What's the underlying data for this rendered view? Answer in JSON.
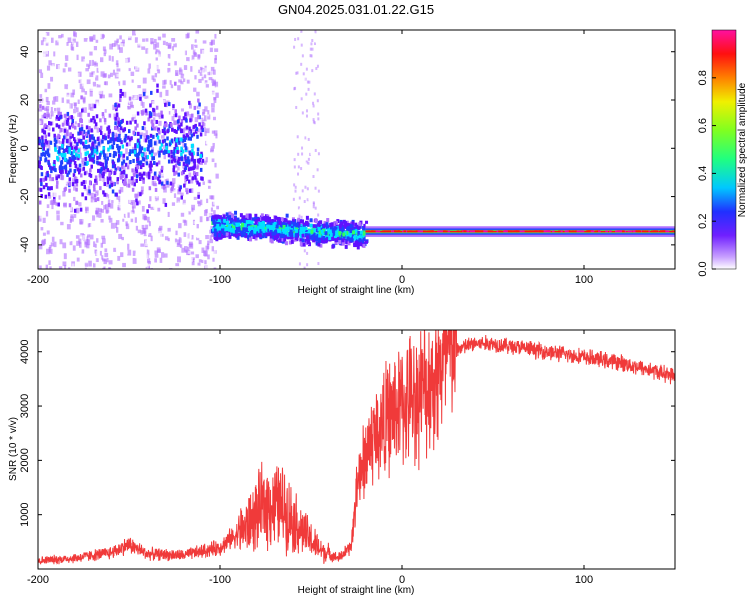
{
  "title": "GN04.2025.031.01.22.G15",
  "colors": {
    "snr_line": "#f03a3a",
    "background": "#ffffff"
  },
  "chart_data": [
    {
      "type": "heatmap",
      "name": "spectrogram",
      "xlabel": "Height of straight line (km)",
      "ylabel": "Frequency (Hz)",
      "xlim": [
        -200,
        150
      ],
      "ylim": [
        -50,
        49
      ],
      "x_ticks": [
        -200,
        -100,
        0,
        100
      ],
      "y_ticks": [
        -40,
        -20,
        0,
        20,
        40
      ],
      "colorbar": {
        "label": "Normalized spectral amplitude",
        "range": [
          0,
          1
        ],
        "ticks": [
          "0.0",
          "0.2",
          "0.4",
          "0.6",
          "0.8"
        ],
        "colors": [
          "#ffffff",
          "#b070ff",
          "#6010ff",
          "#2040ff",
          "#00e0ff",
          "#30ff60",
          "#e0ff00",
          "#ff6000",
          "#ff1010",
          "#ff00a0"
        ]
      },
      "features": [
        {
          "x_range": [
            -200,
            -110
          ],
          "frequency_hz": 0,
          "spread_hz": 10,
          "note": "noisy cluster"
        },
        {
          "x_range": [
            -105,
            -20
          ],
          "frequency_hz_start": -31,
          "frequency_hz_end": -35
        },
        {
          "x_range": [
            -20,
            150
          ],
          "frequency_hz": -34.5,
          "note": "narrow tone"
        }
      ]
    },
    {
      "type": "line",
      "name": "snr",
      "xlabel": "Height of straight line (km)",
      "ylabel": "SNR (10 * v/v)",
      "xlim": [
        -200,
        150
      ],
      "ylim": [
        0,
        4400
      ],
      "x_ticks": [
        -200,
        -100,
        0,
        100
      ],
      "y_ticks": [
        1000,
        2000,
        3000,
        4000
      ],
      "series": [
        {
          "x": [
            -200,
            -180,
            -160,
            -150,
            -140,
            -120,
            -100,
            -85,
            -75,
            -65,
            -55,
            -45,
            -35,
            -28,
            -25,
            -22,
            -18,
            -12,
            -5,
            0,
            5,
            10,
            15,
            20,
            25,
            30,
            40,
            50,
            60,
            80,
            100,
            120,
            150
          ],
          "values": [
            150,
            200,
            300,
            450,
            280,
            250,
            400,
            800,
            1200,
            1150,
            700,
            350,
            200,
            400,
            1400,
            1900,
            2300,
            2600,
            2900,
            3000,
            3150,
            3250,
            3400,
            3600,
            3900,
            4050,
            4150,
            4150,
            4100,
            4000,
            3900,
            3800,
            3550
          ]
        }
      ]
    }
  ]
}
